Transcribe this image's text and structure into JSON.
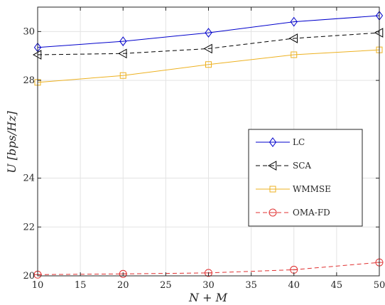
{
  "chart_data": {
    "type": "line",
    "xlabel": "N + M",
    "ylabel": "U [bps/Hz]",
    "xlim": [
      10,
      50
    ],
    "ylim": [
      20,
      31
    ],
    "xticks": [
      10,
      15,
      20,
      25,
      30,
      35,
      40,
      45,
      50
    ],
    "yticks": [
      20,
      22,
      24,
      28,
      30
    ],
    "xtick_labels": [
      "10",
      "15",
      "20",
      "25",
      "30",
      "35",
      "40",
      "45",
      "50"
    ],
    "ytick_labels": [
      "20",
      "22",
      "24",
      "28",
      "30"
    ],
    "grid": true,
    "legend_position": "right",
    "x": [
      10,
      20,
      30,
      40,
      50
    ],
    "series": [
      {
        "name": "LC",
        "values": [
          29.35,
          29.6,
          29.95,
          30.4,
          30.65
        ],
        "color": "#0000cc",
        "dash": "solid",
        "marker": "diamond"
      },
      {
        "name": "SCA",
        "values": [
          29.05,
          29.1,
          29.3,
          29.72,
          29.95
        ],
        "color": "#000000",
        "dash": "dashed",
        "marker": "triangle-left"
      },
      {
        "name": "WMMSE",
        "values": [
          27.92,
          28.2,
          28.65,
          29.05,
          29.25
        ],
        "color": "#edb120",
        "dash": "solid",
        "marker": "square"
      },
      {
        "name": "OMA-FD",
        "values": [
          20.05,
          20.08,
          20.12,
          20.25,
          20.55
        ],
        "color": "#e03030",
        "dash": "dashed",
        "marker": "circle"
      }
    ]
  }
}
